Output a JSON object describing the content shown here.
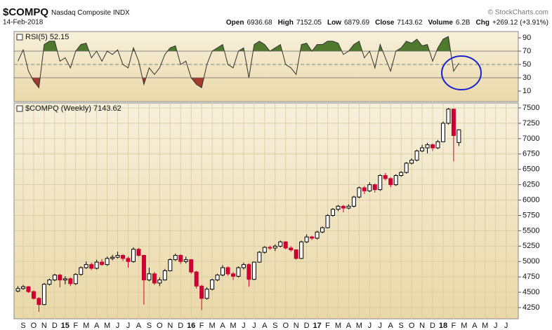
{
  "chart_data": [
    {
      "type": "candlestick",
      "title": "$COMPQ",
      "subtitle": "Nasdaq Composite INDX",
      "date": "14-Feb-2018",
      "source": "© StockCharts.com",
      "stats": [
        {
          "label": "Open",
          "value": "6936.68"
        },
        {
          "label": "High",
          "value": "7152.05"
        },
        {
          "label": "Low",
          "value": "6879.69"
        },
        {
          "label": "Close",
          "value": "7143.62"
        },
        {
          "label": "Volume",
          "value": "6.2B"
        },
        {
          "label": "Chg",
          "value": "+269.12 (+3.91%)"
        }
      ],
      "legend": "$COMPQ (Weekly) 7143.62",
      "x": [
        -0.5,
        0,
        0.5,
        1,
        1.5,
        2,
        2.5,
        3,
        3.5,
        4,
        4.5,
        5,
        5.5,
        6,
        6.5,
        7,
        7.5,
        8,
        8.5,
        9,
        9.5,
        10,
        10.5,
        11,
        11.5,
        12,
        12.5,
        13,
        13.5,
        14,
        14.5,
        15,
        15.5,
        16,
        16.5,
        17,
        17.5,
        18,
        18.5,
        19,
        19.5,
        20,
        20.5,
        21,
        21.5,
        22,
        22.5,
        23,
        23.5,
        24,
        24.5,
        25,
        25.5,
        26,
        26.5,
        27,
        27.5,
        28,
        28.5,
        29,
        29.5,
        30,
        30.5,
        31,
        31.5,
        32,
        32.5,
        33,
        33.5,
        34,
        34.5,
        35,
        35.5,
        36,
        36.5,
        37,
        37.5,
        38,
        38.5,
        39,
        39.5,
        40,
        40.5,
        41,
        41.5
      ],
      "open": [
        4520,
        4560,
        4590,
        4510,
        4400,
        4300,
        4630,
        4700,
        4780,
        4700,
        4720,
        4640,
        4790,
        4900,
        4950,
        4890,
        4990,
        4950,
        5050,
        5070,
        5100,
        5050,
        5000,
        5200,
        5100,
        4700,
        4800,
        4650,
        4700,
        4850,
        5030,
        5100,
        5000,
        5030,
        4830,
        4600,
        4400,
        4550,
        4700,
        4780,
        4900,
        4800,
        4760,
        4900,
        4950,
        4710,
        4990,
        5150,
        5230,
        5220,
        5250,
        5320,
        5220,
        5190,
        5050,
        5320,
        5400,
        5380,
        5480,
        5550,
        5750,
        5850,
        5900,
        5870,
        5900,
        6050,
        6200,
        6150,
        6250,
        6170,
        6400,
        6350,
        6250,
        6400,
        6450,
        6600,
        6650,
        6800,
        6850,
        6900,
        6850,
        6950,
        7250,
        7480,
        6936.68
      ],
      "high": [
        4600,
        4620,
        4600,
        4530,
        4420,
        4650,
        4720,
        4800,
        4800,
        4760,
        4740,
        4810,
        4920,
        5000,
        4980,
        5030,
        5040,
        5080,
        5110,
        5160,
        5120,
        5080,
        5230,
        5220,
        5110,
        4900,
        4830,
        4740,
        4880,
        5050,
        5130,
        5120,
        5080,
        5040,
        4850,
        4620,
        4580,
        4720,
        4800,
        4940,
        4920,
        4830,
        4920,
        4980,
        4970,
        5000,
        5170,
        5250,
        5260,
        5280,
        5340,
        5330,
        5250,
        5200,
        5340,
        5440,
        5420,
        5500,
        5570,
        5770,
        5870,
        5920,
        5920,
        5930,
        6070,
        6220,
        6230,
        6290,
        6270,
        6420,
        6440,
        6370,
        6420,
        6470,
        6620,
        6680,
        6820,
        6900,
        6930,
        6920,
        6980,
        7280,
        7500,
        7490,
        7152.05
      ],
      "low": [
        4500,
        4540,
        4490,
        4380,
        4180,
        4290,
        4610,
        4680,
        4580,
        4630,
        4600,
        4620,
        4770,
        4880,
        4860,
        4870,
        4930,
        4930,
        5020,
        5050,
        5010,
        4900,
        4980,
        5080,
        4300,
        4680,
        4620,
        4600,
        4690,
        4840,
        5010,
        4960,
        4970,
        4800,
        4560,
        4210,
        4380,
        4530,
        4680,
        4760,
        4770,
        4700,
        4740,
        4870,
        4590,
        4700,
        4980,
        5130,
        5190,
        5170,
        5230,
        5200,
        5160,
        5030,
        5040,
        5300,
        5350,
        5360,
        5460,
        5540,
        5730,
        5820,
        5800,
        5850,
        5880,
        6030,
        6100,
        6130,
        6120,
        6150,
        6320,
        6210,
        6230,
        6380,
        6430,
        6580,
        6630,
        6780,
        6760,
        6800,
        6830,
        6940,
        7230,
        6630,
        6879.69
      ],
      "close": [
        4560,
        4590,
        4510,
        4400,
        4300,
        4630,
        4700,
        4780,
        4700,
        4720,
        4640,
        4790,
        4900,
        4950,
        4890,
        4990,
        4950,
        5050,
        5070,
        5100,
        5050,
        5000,
        5200,
        5100,
        4700,
        4800,
        4650,
        4700,
        4850,
        5030,
        5100,
        5000,
        5030,
        4830,
        4600,
        4400,
        4550,
        4700,
        4780,
        4900,
        4800,
        4760,
        4900,
        4950,
        4710,
        4990,
        5150,
        5230,
        5220,
        5250,
        5320,
        5220,
        5190,
        5050,
        5320,
        5400,
        5380,
        5480,
        5550,
        5750,
        5850,
        5900,
        5870,
        5900,
        6050,
        6200,
        6150,
        6250,
        6170,
        6400,
        6350,
        6250,
        6400,
        6450,
        6600,
        6650,
        6800,
        6850,
        6900,
        6850,
        6950,
        7250,
        7480,
        7050,
        7143.62
      ],
      "up_color": "#000000",
      "down_color": "#cc0033",
      "xlim": [
        -0.87,
        47.16
      ],
      "xticks": [
        {
          "value": 0,
          "label": "S"
        },
        {
          "value": 1,
          "label": "O"
        },
        {
          "value": 2,
          "label": "N"
        },
        {
          "value": 3,
          "label": "D"
        },
        {
          "value": 4,
          "label": "15"
        },
        {
          "value": 5,
          "label": "F"
        },
        {
          "value": 6,
          "label": "M"
        },
        {
          "value": 7,
          "label": "A"
        },
        {
          "value": 8,
          "label": "M"
        },
        {
          "value": 9,
          "label": "J"
        },
        {
          "value": 10,
          "label": "J"
        },
        {
          "value": 11,
          "label": "A"
        },
        {
          "value": 12,
          "label": "S"
        },
        {
          "value": 13,
          "label": "O"
        },
        {
          "value": 14,
          "label": "N"
        },
        {
          "value": 15,
          "label": "D"
        },
        {
          "value": 16,
          "label": "16"
        },
        {
          "value": 17,
          "label": "F"
        },
        {
          "value": 18,
          "label": "M"
        },
        {
          "value": 19,
          "label": "A"
        },
        {
          "value": 20,
          "label": "M"
        },
        {
          "value": 21,
          "label": "J"
        },
        {
          "value": 22,
          "label": "J"
        },
        {
          "value": 23,
          "label": "A"
        },
        {
          "value": 24,
          "label": "S"
        },
        {
          "value": 25,
          "label": "O"
        },
        {
          "value": 26,
          "label": "N"
        },
        {
          "value": 27,
          "label": "D"
        },
        {
          "value": 28,
          "label": "17"
        },
        {
          "value": 29,
          "label": "F"
        },
        {
          "value": 30,
          "label": "M"
        },
        {
          "value": 31,
          "label": "A"
        },
        {
          "value": 32,
          "label": "M"
        },
        {
          "value": 33,
          "label": "J"
        },
        {
          "value": 34,
          "label": "J"
        },
        {
          "value": 35,
          "label": "A"
        },
        {
          "value": 36,
          "label": "S"
        },
        {
          "value": 37,
          "label": "O"
        },
        {
          "value": 38,
          "label": "N"
        },
        {
          "value": 39,
          "label": "D"
        },
        {
          "value": 40,
          "label": "18"
        },
        {
          "value": 41,
          "label": "F"
        },
        {
          "value": 42,
          "label": "M"
        },
        {
          "value": 43,
          "label": "A"
        },
        {
          "value": 44,
          "label": "M"
        },
        {
          "value": 45,
          "label": "J"
        },
        {
          "value": 46,
          "label": "J"
        }
      ],
      "ylim": [
        4068,
        7580
      ],
      "yticks": [
        4250,
        4500,
        4750,
        5000,
        5250,
        5500,
        5750,
        6000,
        6250,
        6500,
        6750,
        7000,
        7250,
        7500
      ],
      "grid": true
    },
    {
      "type": "line",
      "legend": "RSI(5) 52.15",
      "x": [
        -0.5,
        0,
        0.5,
        1,
        1.5,
        2,
        2.5,
        3,
        3.5,
        4,
        4.5,
        5,
        5.5,
        6,
        6.5,
        7,
        7.5,
        8,
        8.5,
        9,
        9.5,
        10,
        10.5,
        11,
        11.5,
        12,
        12.5,
        13,
        13.5,
        14,
        14.5,
        15,
        15.5,
        16,
        16.5,
        17,
        17.5,
        18,
        18.5,
        19,
        19.5,
        20,
        20.5,
        21,
        21.5,
        22,
        22.5,
        23,
        23.5,
        24,
        24.5,
        25,
        25.5,
        26,
        26.5,
        27,
        27.5,
        28,
        28.5,
        29,
        29.5,
        30,
        30.5,
        31,
        31.5,
        32,
        32.5,
        33,
        33.5,
        34,
        34.5,
        35,
        35.5,
        36,
        36.5,
        37,
        37.5,
        38,
        38.5,
        39,
        39.5,
        40,
        40.5,
        41,
        41.5
      ],
      "values": [
        55,
        72,
        40,
        25,
        15,
        80,
        85,
        85,
        55,
        60,
        45,
        70,
        80,
        82,
        60,
        70,
        55,
        70,
        65,
        72,
        50,
        45,
        75,
        55,
        20,
        45,
        35,
        45,
        65,
        75,
        78,
        50,
        55,
        30,
        20,
        15,
        50,
        70,
        75,
        80,
        50,
        45,
        70,
        75,
        30,
        80,
        85,
        80,
        70,
        75,
        80,
        50,
        45,
        35,
        80,
        82,
        70,
        80,
        80,
        85,
        85,
        82,
        65,
        70,
        80,
        85,
        60,
        70,
        45,
        80,
        60,
        40,
        70,
        75,
        85,
        82,
        88,
        78,
        80,
        55,
        75,
        88,
        92,
        40,
        52.15
      ],
      "color": "#333333",
      "overbought_color": "#4f7a2e",
      "oversold_color": "#a33a2a",
      "levels": {
        "overbought": 70,
        "midline": 50,
        "oversold": 30
      },
      "xlim": [
        -0.87,
        47.16
      ],
      "ylim": [
        -5.8,
        99.5
      ],
      "yticks": [
        10,
        30,
        50,
        70,
        90
      ]
    }
  ]
}
